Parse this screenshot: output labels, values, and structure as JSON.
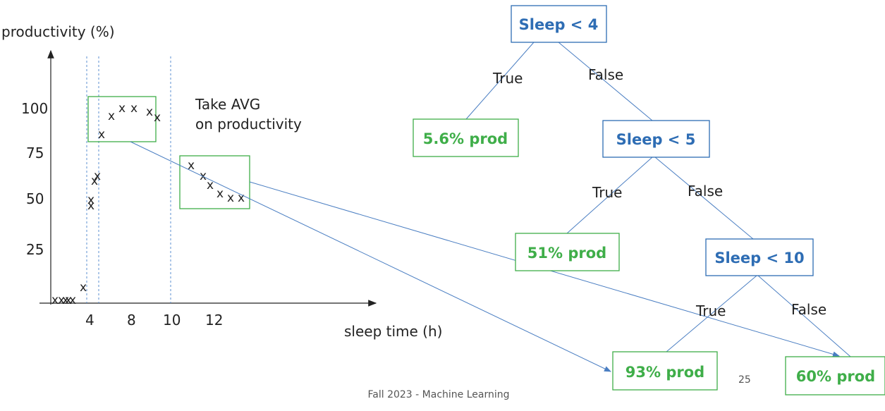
{
  "axis": {
    "y_title": "productivity (%)",
    "x_title": "sleep time (h)",
    "x_ticks": [
      "4",
      "8",
      "10",
      "12"
    ],
    "y_ticks": [
      "100",
      "75",
      "50",
      "25"
    ]
  },
  "annotation": {
    "line1": "Take AVG",
    "line2": "on productivity"
  },
  "scatter_marks": {
    "symbol": "x",
    "count": 26
  },
  "tree": {
    "nodes": {
      "root": "Sleep < 4",
      "sleep5": "Sleep < 5",
      "sleep10": "Sleep < 10",
      "leaf_low": "5.6% prod",
      "leaf_51": "51% prod",
      "leaf_93": "93% prod",
      "leaf_60": "60% prod"
    },
    "edges": {
      "true": "True",
      "false": "False"
    }
  },
  "colors": {
    "decision": "#2e6db4",
    "leaf": "#3fae49",
    "arrow": "#4a7ec2",
    "guide": "#5b8fd0"
  },
  "footer": {
    "course": "Fall 2023 - Machine Learning",
    "page": "25"
  }
}
